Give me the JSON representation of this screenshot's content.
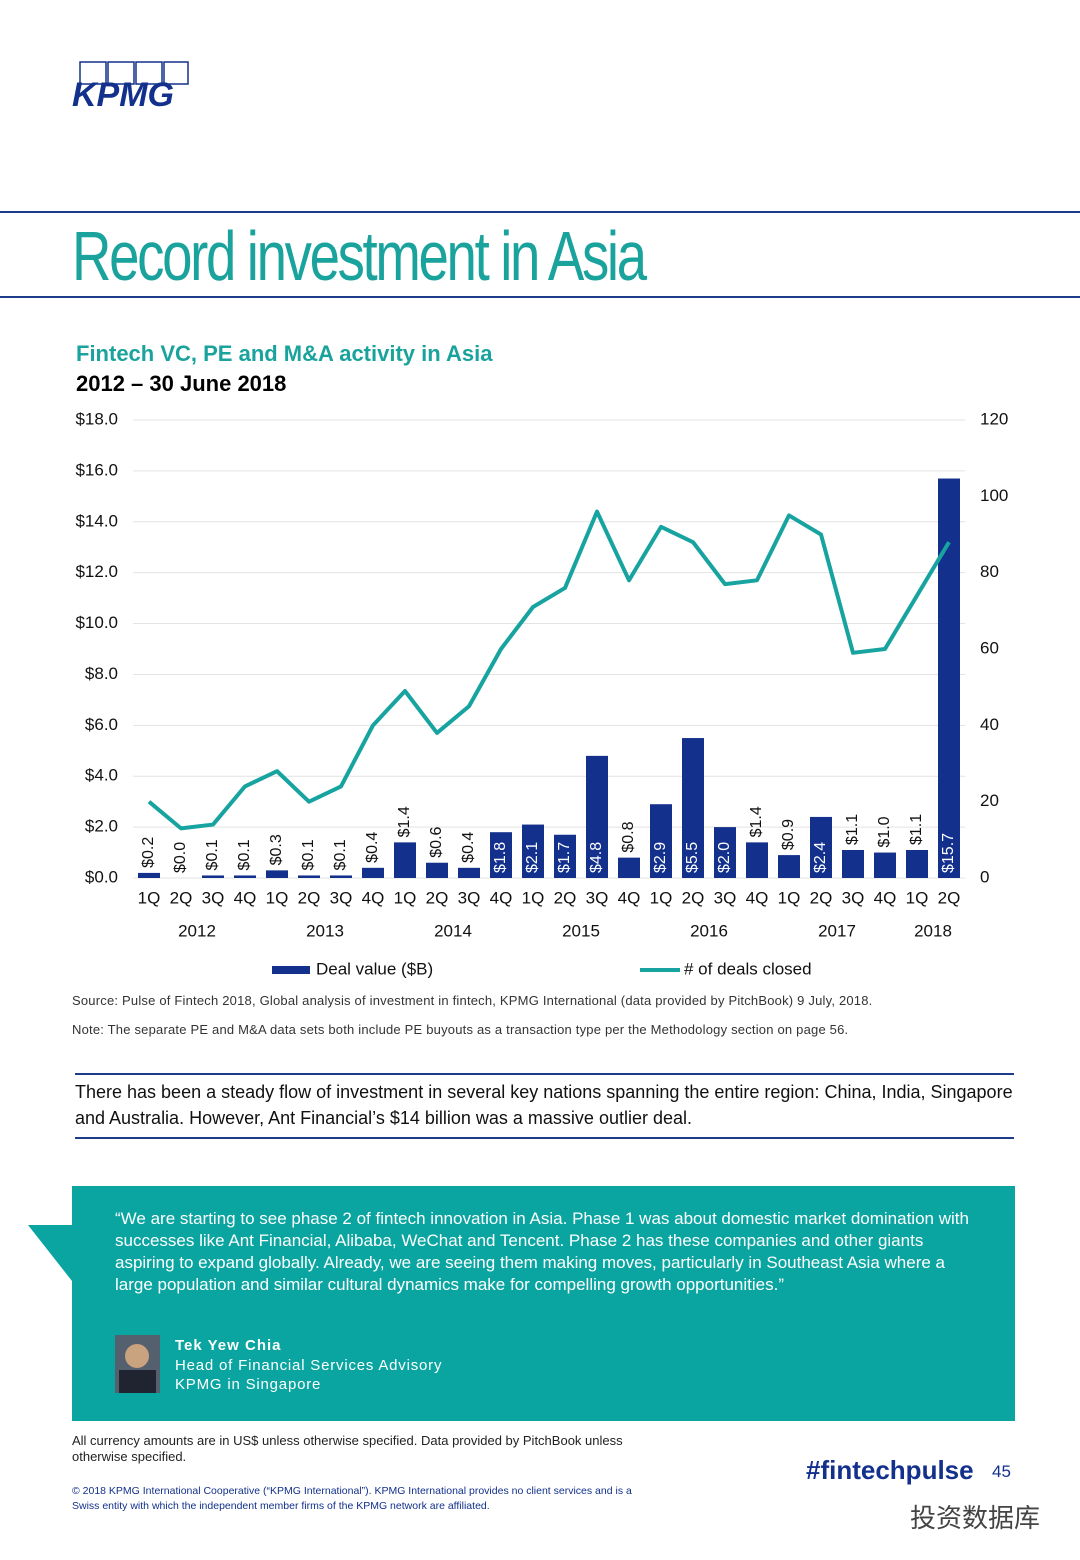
{
  "header": {
    "logo": "KPMG",
    "title": "Record investment in Asia"
  },
  "chart_data": {
    "type": "bar",
    "title": "Fintech VC, PE and M&A activity in Asia",
    "subtitle": "2012 – 30 June 2018",
    "categories": [
      "1Q",
      "2Q",
      "3Q",
      "4Q",
      "1Q",
      "2Q",
      "3Q",
      "4Q",
      "1Q",
      "2Q",
      "3Q",
      "4Q",
      "1Q",
      "2Q",
      "3Q",
      "4Q",
      "1Q",
      "2Q",
      "3Q",
      "4Q",
      "1Q",
      "2Q",
      "3Q",
      "4Q",
      "1Q",
      "2Q"
    ],
    "groups": [
      {
        "name": "2012",
        "size": 4
      },
      {
        "name": "2013",
        "size": 4
      },
      {
        "name": "2014",
        "size": 4
      },
      {
        "name": "2015",
        "size": 4
      },
      {
        "name": "2016",
        "size": 4
      },
      {
        "name": "2017",
        "size": 4
      },
      {
        "name": "2018",
        "size": 2
      }
    ],
    "series": [
      {
        "name": "Deal value ($B)",
        "type": "bar",
        "color": "#12308c",
        "values": [
          0.2,
          0.0,
          0.1,
          0.1,
          0.3,
          0.1,
          0.1,
          0.4,
          1.4,
          0.6,
          0.4,
          1.8,
          2.1,
          1.7,
          4.8,
          0.8,
          2.9,
          5.5,
          2.0,
          1.4,
          0.9,
          2.4,
          1.1,
          1.0,
          1.1,
          15.7
        ],
        "value_labels": [
          "$0.2",
          "$0.0",
          "$0.1",
          "$0.1",
          "$0.3",
          "$0.1",
          "$0.1",
          "$0.4",
          "$1.4",
          "$0.6",
          "$0.4",
          "$1.8",
          "$2.1",
          "$1.7",
          "$4.8",
          "$0.8",
          "$2.9",
          "$5.5",
          "$2.0",
          "$1.4",
          "$0.9",
          "$2.4",
          "$1.1",
          "$1.0",
          "$1.1",
          "$15.7"
        ]
      },
      {
        "name": "# of deals closed",
        "type": "line",
        "color": "#17a39f",
        "axis": "y2",
        "values": [
          20,
          13,
          14,
          24,
          28,
          20,
          24,
          40,
          49,
          38,
          45,
          60,
          71,
          76,
          96,
          78,
          92,
          88,
          77,
          78,
          95,
          90,
          59,
          60,
          74,
          88
        ]
      }
    ],
    "ylim": [
      0,
      18
    ],
    "yticks": [
      {
        "value": 0,
        "label": "$0.0"
      },
      {
        "value": 2,
        "label": "$2.0"
      },
      {
        "value": 4,
        "label": "$4.0"
      },
      {
        "value": 6,
        "label": "$6.0"
      },
      {
        "value": 8,
        "label": "$8.0"
      },
      {
        "value": 10,
        "label": "$10.0"
      },
      {
        "value": 12,
        "label": "$12.0"
      },
      {
        "value": 14,
        "label": "$14.0"
      },
      {
        "value": 16,
        "label": "$16.0"
      },
      {
        "value": 18,
        "label": "$18.0"
      }
    ],
    "y2lim": [
      0,
      120
    ],
    "y2ticks": [
      0,
      20,
      40,
      60,
      80,
      100,
      120
    ],
    "grid": true,
    "legend": "bottom"
  },
  "notes": {
    "source": "Source: Pulse of Fintech 2018, Global analysis of investment in fintech, KPMG International (data provided by PitchBook) 9 July, 2018.",
    "note": "Note: The separate PE and M&A data sets both include PE buyouts as a transaction type per the Methodology section on page 56."
  },
  "summary": "There has been a steady flow of investment in several key nations spanning the entire region: China, India, Singapore and Australia. However, Ant Financial’s $14 billion was a massive outlier deal.",
  "quote": {
    "text": "“We are starting to see phase 2 of fintech innovation in Asia. Phase 1 was about domestic market domination with successes like Ant Financial, Alibaba, WeChat and Tencent. Phase 2 has these companies and other giants aspiring to expand globally. Already, we are seeing them making moves, particularly in Southeast Asia where a large population and similar cultural dynamics make for compelling growth opportunities.”",
    "name": "Tek Yew Chia",
    "role": "Head of Financial Services Advisory",
    "org": "KPMG in Singapore"
  },
  "footer": {
    "currency_note": "All currency amounts are in US$ unless otherwise specified. Data provided by PitchBook unless otherwise specified.",
    "copyright": "© 2018 KPMG International Cooperative (“KPMG International”). KPMG International provides no client services and is a Swiss entity with which the independent member firms of the KPMG network are affiliated.",
    "hashtag": "#fintechpulse",
    "page_number": 45,
    "watermark": "投资数据库"
  }
}
